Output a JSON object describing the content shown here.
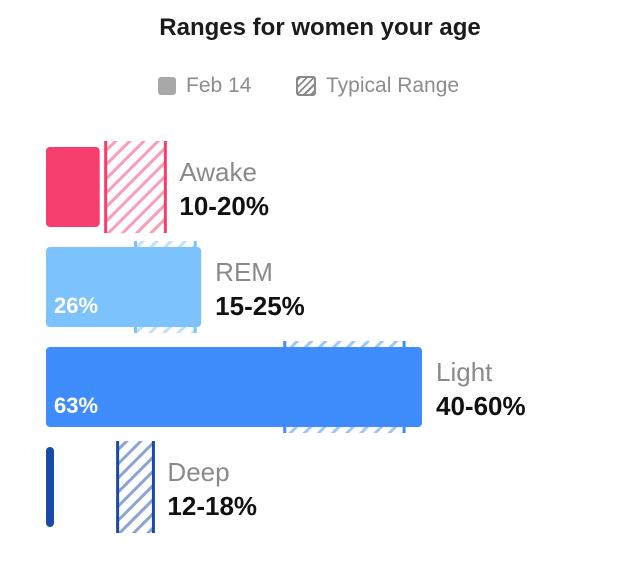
{
  "chart_data": {
    "type": "bar",
    "title": "Ranges for women your age",
    "legend": {
      "position": "top",
      "items": [
        {
          "label": "Feb 14",
          "style": "solid",
          "color": "#a8a8a8"
        },
        {
          "label": "Typical Range",
          "style": "hatched",
          "color": "#8a8a8a"
        }
      ]
    },
    "categories": [
      "Awake",
      "REM",
      "Light",
      "Deep"
    ],
    "series": [
      {
        "name": "Feb 14",
        "values": [
          9,
          26,
          63,
          1
        ],
        "value_labels": [
          "",
          "26%",
          "63%",
          ""
        ]
      }
    ],
    "typical_ranges": [
      {
        "label": "10-20%",
        "min": 10,
        "max": 20
      },
      {
        "label": "15-25%",
        "min": 15,
        "max": 25
      },
      {
        "label": "40-60%",
        "min": 40,
        "max": 60
      },
      {
        "label": "12-18%",
        "min": 12,
        "max": 18
      }
    ],
    "colors": [
      "#f53d6e",
      "#7cc2fc",
      "#3f8cfc",
      "#1a4aa7"
    ],
    "xlim": [
      0,
      63
    ]
  }
}
